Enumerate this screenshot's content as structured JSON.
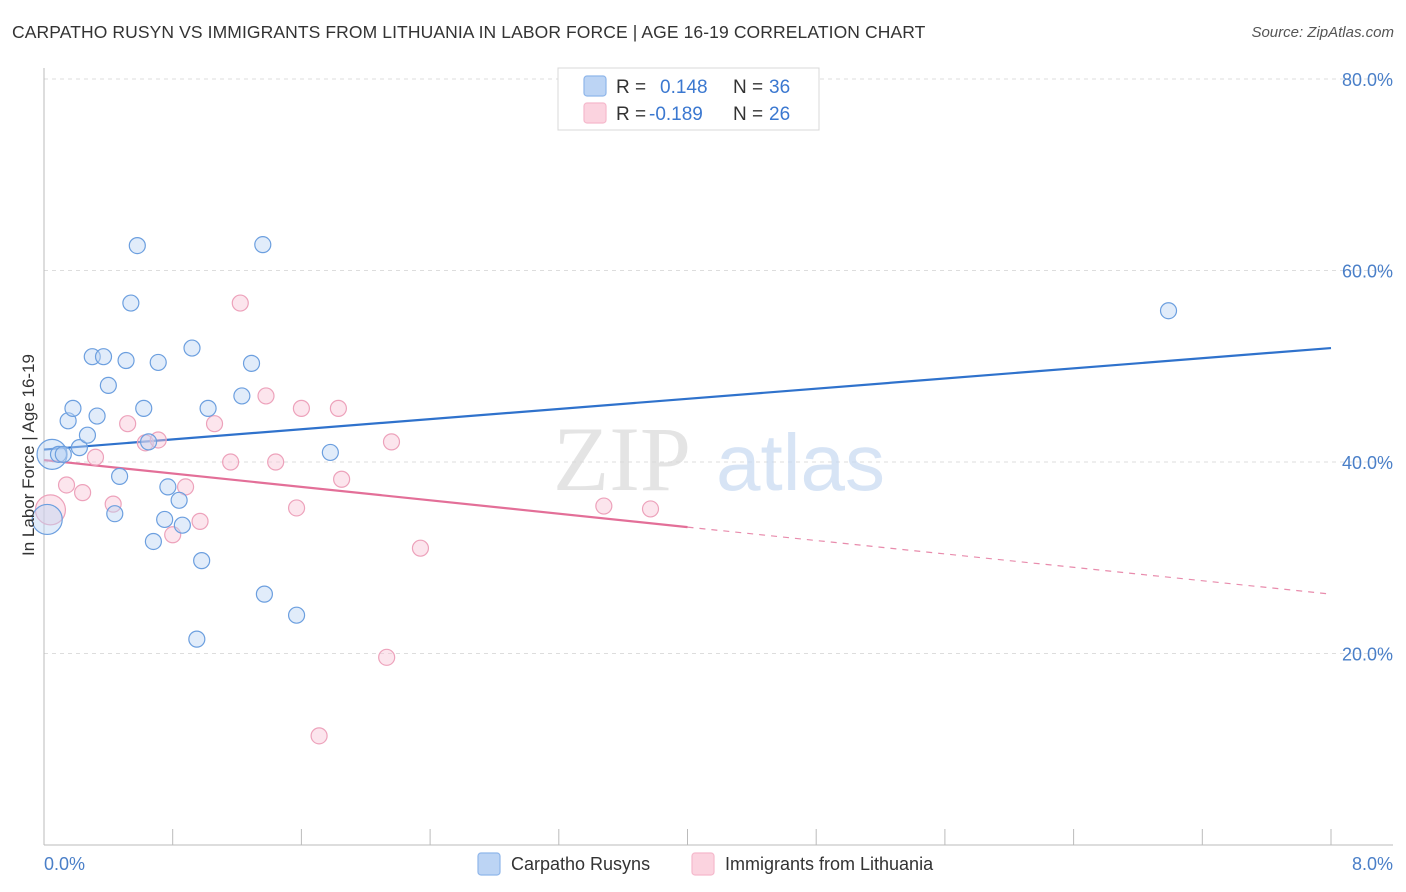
{
  "title": "CARPATHO RUSYN VS IMMIGRANTS FROM LITHUANIA IN LABOR FORCE | AGE 16-19 CORRELATION CHART",
  "source": "Source: ZipAtlas.com",
  "watermark": {
    "zip": "ZIP",
    "atlas": "atlas"
  },
  "legend": {
    "rows": [
      {
        "r_label": "R =",
        "r_value": "0.148",
        "n_label": "N =",
        "n_value": "36"
      },
      {
        "r_label": "R =",
        "r_value": "-0.189",
        "n_label": "N =",
        "n_value": "26"
      }
    ]
  },
  "chart_data": {
    "type": "scatter",
    "title": "CARPATHO RUSYN VS IMMIGRANTS FROM LITHUANIA IN LABOR FORCE | AGE 16-19 CORRELATION CHART",
    "xlabel": "",
    "ylabel": "In Labor Force | Age 16-19",
    "xlim": [
      0,
      8
    ],
    "ylim": [
      0,
      80
    ],
    "x_tick_labels": [
      "0.0%",
      "8.0%"
    ],
    "y_ticks": [
      20,
      40,
      60,
      80
    ],
    "y_tick_labels": [
      "20.0%",
      "40.0%",
      "60.0%",
      "80.0%"
    ],
    "grid": true,
    "legend_position": "top-center",
    "series": [
      {
        "name": "Carpatho Rusyns",
        "color": "#8fb6ea",
        "line_color": "#2f72cc",
        "r": 0.148,
        "n": 36,
        "points": [
          [
            0.02,
            34.0
          ],
          [
            0.05,
            40.8
          ],
          [
            0.09,
            40.8
          ],
          [
            0.12,
            40.8
          ],
          [
            0.15,
            44.3
          ],
          [
            0.18,
            45.6
          ],
          [
            0.22,
            41.5
          ],
          [
            0.27,
            42.8
          ],
          [
            0.3,
            51.0
          ],
          [
            0.33,
            44.8
          ],
          [
            0.37,
            51.0
          ],
          [
            0.4,
            48.0
          ],
          [
            0.44,
            34.6
          ],
          [
            0.47,
            38.5
          ],
          [
            0.51,
            50.6
          ],
          [
            0.54,
            56.6
          ],
          [
            0.58,
            62.6
          ],
          [
            0.62,
            45.6
          ],
          [
            0.65,
            42.1
          ],
          [
            0.68,
            31.7
          ],
          [
            0.71,
            50.4
          ],
          [
            0.75,
            34.0
          ],
          [
            0.77,
            37.4
          ],
          [
            0.84,
            36.0
          ],
          [
            0.86,
            33.4
          ],
          [
            0.92,
            51.9
          ],
          [
            0.95,
            21.5
          ],
          [
            0.98,
            29.7
          ],
          [
            1.02,
            45.6
          ],
          [
            1.23,
            46.9
          ],
          [
            1.29,
            50.3
          ],
          [
            1.36,
            62.7
          ],
          [
            1.37,
            26.2
          ],
          [
            1.57,
            24.0
          ],
          [
            1.78,
            41.0
          ],
          [
            6.99,
            55.8
          ]
        ],
        "trend": {
          "x": [
            0.0,
            8.0
          ],
          "y": [
            41.3,
            51.9
          ]
        }
      },
      {
        "name": "Immigrants from Lithuania",
        "color": "#f5b9cc",
        "line_color": "#e36f98",
        "r": -0.189,
        "n": 26,
        "points": [
          [
            0.04,
            35.0
          ],
          [
            0.14,
            37.6
          ],
          [
            0.24,
            36.8
          ],
          [
            0.32,
            40.5
          ],
          [
            0.43,
            35.6
          ],
          [
            0.52,
            44.0
          ],
          [
            0.63,
            42.0
          ],
          [
            0.71,
            42.3
          ],
          [
            0.8,
            32.4
          ],
          [
            0.88,
            37.4
          ],
          [
            0.97,
            33.8
          ],
          [
            1.06,
            44.0
          ],
          [
            1.16,
            40.0
          ],
          [
            1.22,
            56.6
          ],
          [
            1.38,
            46.9
          ],
          [
            1.44,
            40.0
          ],
          [
            1.57,
            35.2
          ],
          [
            1.6,
            45.6
          ],
          [
            1.71,
            11.4
          ],
          [
            1.83,
            45.6
          ],
          [
            1.85,
            38.2
          ],
          [
            2.13,
            19.6
          ],
          [
            2.16,
            42.1
          ],
          [
            2.34,
            31.0
          ],
          [
            3.48,
            35.4
          ],
          [
            3.77,
            35.1
          ]
        ],
        "trend": {
          "x": [
            0.0,
            8.0
          ],
          "y": [
            40.2,
            26.2
          ],
          "solid_until_x": 4.0
        }
      }
    ]
  }
}
